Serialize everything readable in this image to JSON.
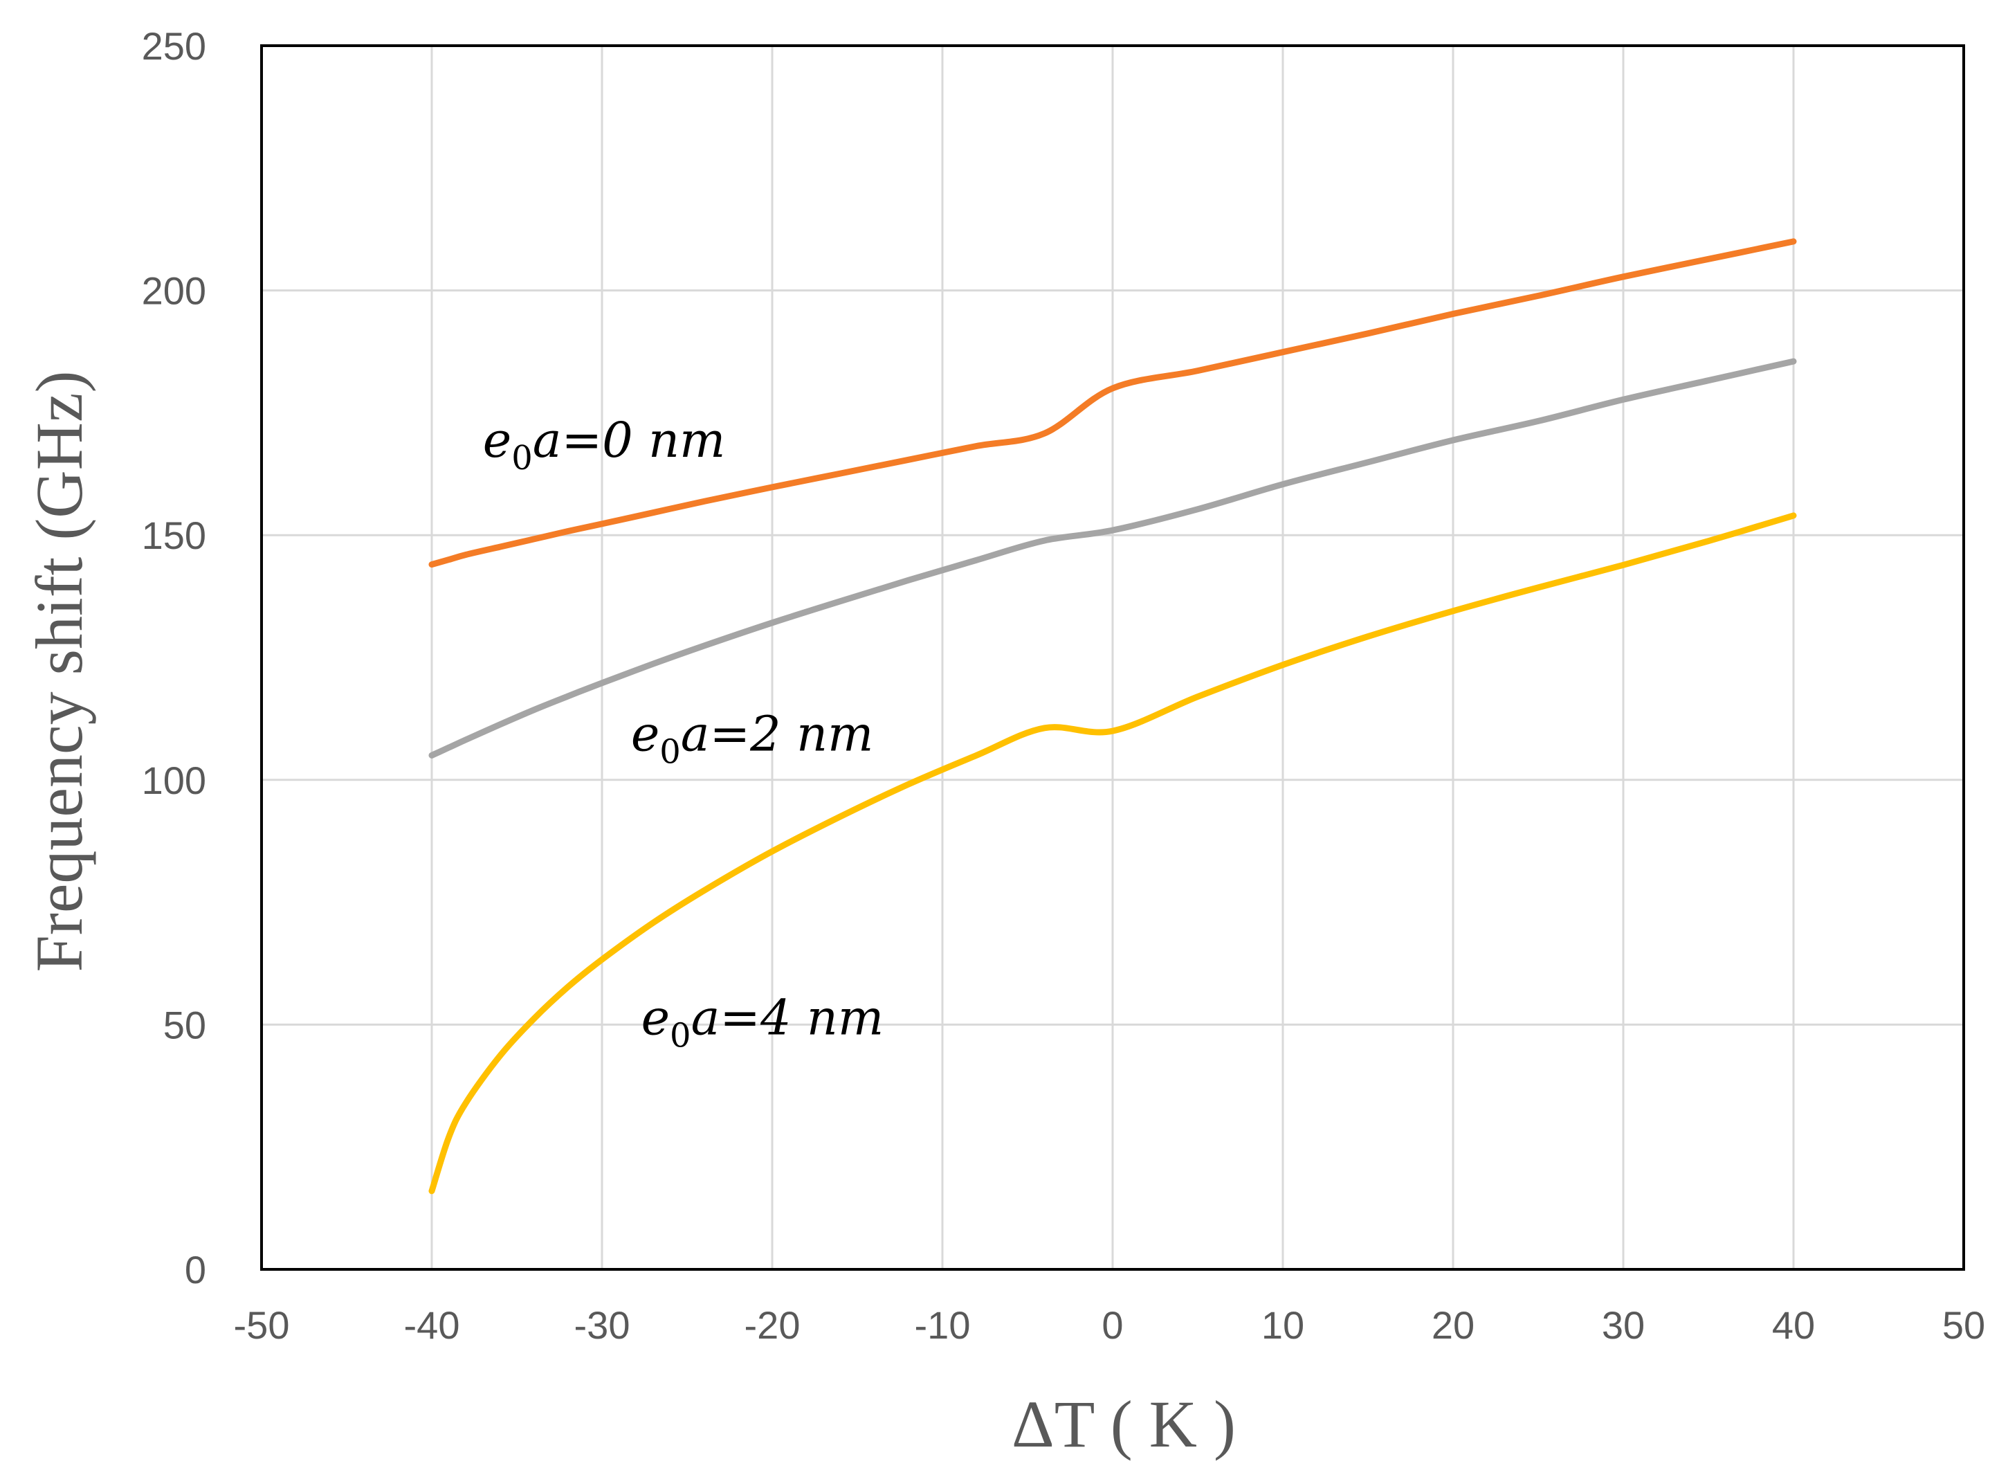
{
  "chart_data": {
    "type": "line",
    "xlabel": "ΔT ( K )",
    "ylabel": "Frequency shift (GHz)",
    "xlim": [
      -50,
      50
    ],
    "ylim": [
      0,
      250
    ],
    "xticks": [
      "-50",
      "-40",
      "-30",
      "-20",
      "-10",
      "0",
      "10",
      "20",
      "30",
      "40",
      "50"
    ],
    "yticks": [
      "0",
      "50",
      "100",
      "150",
      "200",
      "250"
    ],
    "grid": true,
    "x": [
      -40,
      -39,
      -38,
      -36,
      -34,
      -32,
      -30,
      -27,
      -24,
      -20,
      -16,
      -12,
      -8,
      -4,
      0,
      5,
      10,
      15,
      20,
      25,
      30,
      35,
      40
    ],
    "series": [
      {
        "name": "e0a=0 nm",
        "color": "#F47C26",
        "values": [
          144,
          145,
          146,
          147.6,
          149.2,
          150.8,
          152.3,
          154.6,
          156.9,
          159.8,
          162.6,
          165.4,
          168.2,
          170.8,
          180,
          183.6,
          187.4,
          191.2,
          195.2,
          198.9,
          202.8,
          206.4,
          210
        ]
      },
      {
        "name": "e0a=2 nm",
        "color": "#A5A5A5",
        "values": [
          105,
          106.6,
          108.2,
          111.3,
          114.3,
          117.1,
          119.8,
          123.7,
          127.4,
          132.1,
          136.5,
          140.8,
          144.9,
          148.9,
          151,
          155.3,
          160.4,
          164.9,
          169.4,
          173.3,
          177.7,
          181.6,
          185.5
        ]
      },
      {
        "name": "e0a=4 nm",
        "color": "#FFC000",
        "values": [
          16,
          27,
          34,
          43.6,
          51.2,
          57.7,
          63.3,
          70.8,
          77.4,
          85.4,
          92.5,
          99.1,
          105,
          110.6,
          110,
          117,
          123.5,
          129.3,
          134.5,
          139.3,
          143.9,
          148.8,
          154
        ]
      }
    ],
    "annotations": [
      {
        "prefix": "e",
        "sub": "0",
        "suffix": "a=0 nm",
        "x": -37,
        "y": 166
      },
      {
        "prefix": "e",
        "sub": "0",
        "suffix": "a=2 nm",
        "x": -28.3,
        "y": 106
      },
      {
        "prefix": "e",
        "sub": "0",
        "suffix": "a=4 nm",
        "x": -27.7,
        "y": 48
      }
    ]
  }
}
